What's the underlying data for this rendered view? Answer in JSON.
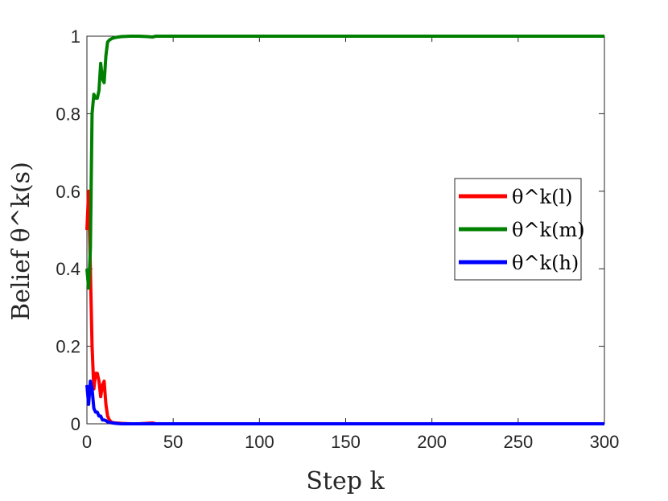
{
  "chart_data": {
    "type": "line",
    "xlabel": "Step k",
    "ylabel": "Belief θ^k(s)",
    "xlim": [
      0,
      300
    ],
    "ylim": [
      0,
      1
    ],
    "xticks": [
      "0",
      "50",
      "100",
      "150",
      "200",
      "250",
      "300"
    ],
    "yticks": [
      "0",
      "0.2",
      "0.4",
      "0.6",
      "0.8",
      "1"
    ],
    "grid": false,
    "legend_position": "right",
    "series": [
      {
        "name": "θ^k(l)",
        "color": "#ff0000",
        "x": [
          0,
          1,
          2,
          3,
          4,
          5,
          6,
          7,
          8,
          9,
          10,
          11,
          12,
          13,
          14,
          15,
          17,
          20,
          25,
          30,
          38,
          40,
          300
        ],
        "y": [
          0.5,
          0.6,
          0.4,
          0.2,
          0.09,
          0.13,
          0.13,
          0.11,
          0.07,
          0.1,
          0.11,
          0.05,
          0.02,
          0.01,
          0.005,
          0.003,
          0.002,
          0.001,
          0.0,
          0.0,
          0.002,
          0.0,
          0.0
        ]
      },
      {
        "name": "θ^k(m)",
        "color": "#008000",
        "x": [
          0,
          1,
          2,
          3,
          4,
          5,
          6,
          7,
          8,
          9,
          10,
          11,
          12,
          13,
          14,
          15,
          17,
          20,
          25,
          30,
          35,
          38,
          40,
          300
        ],
        "y": [
          0.4,
          0.35,
          0.45,
          0.8,
          0.85,
          0.84,
          0.84,
          0.86,
          0.93,
          0.89,
          0.88,
          0.95,
          0.985,
          0.99,
          0.993,
          0.995,
          0.997,
          0.999,
          1.0,
          1.0,
          0.999,
          0.998,
          1.0,
          1.0
        ]
      },
      {
        "name": "θ^k(h)",
        "color": "#0000ff",
        "x": [
          0,
          1,
          2,
          3,
          4,
          5,
          6,
          7,
          8,
          9,
          10,
          11,
          12,
          13,
          14,
          15,
          17,
          20,
          25,
          30,
          40,
          300
        ],
        "y": [
          0.1,
          0.05,
          0.11,
          0.09,
          0.04,
          0.03,
          0.03,
          0.02,
          0.02,
          0.01,
          0.01,
          0.008,
          0.005,
          0.004,
          0.003,
          0.002,
          0.001,
          0.0,
          0.0,
          0.0,
          0.0,
          0.0
        ]
      }
    ]
  }
}
